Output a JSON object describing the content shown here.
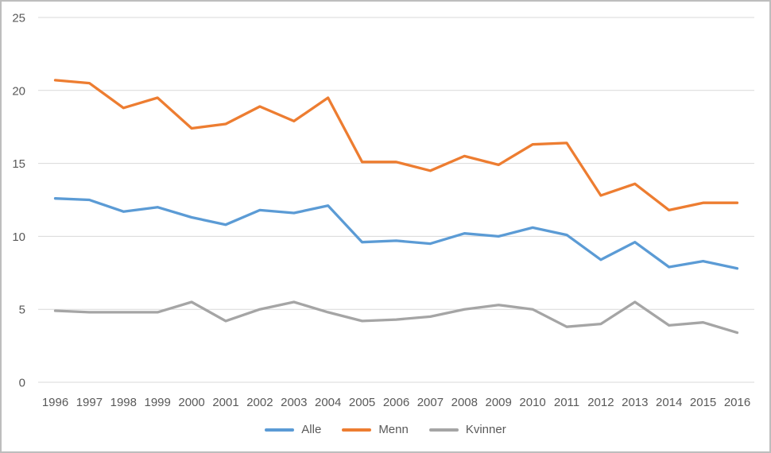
{
  "chart_data": {
    "type": "line",
    "title": "",
    "xlabel": "",
    "ylabel": "",
    "x": [
      "1996",
      "1997",
      "1998",
      "1999",
      "2000",
      "2001",
      "2002",
      "2003",
      "2004",
      "2005",
      "2006",
      "2007",
      "2008",
      "2009",
      "2010",
      "2011",
      "2012",
      "2013",
      "2014",
      "2015",
      "2016"
    ],
    "series": [
      {
        "name": "Alle",
        "color": "#5B9BD5",
        "values": [
          12.6,
          12.5,
          11.7,
          12.0,
          11.3,
          10.8,
          11.8,
          11.6,
          12.1,
          9.6,
          9.7,
          9.5,
          10.2,
          10.0,
          10.6,
          10.1,
          8.4,
          9.6,
          7.9,
          8.3,
          7.8
        ]
      },
      {
        "name": "Menn",
        "color": "#ED7D31",
        "values": [
          20.7,
          20.5,
          18.8,
          19.5,
          17.4,
          17.7,
          18.9,
          17.9,
          19.5,
          15.1,
          15.1,
          14.5,
          15.5,
          14.9,
          16.3,
          16.4,
          12.8,
          13.6,
          11.8,
          12.3,
          12.3
        ]
      },
      {
        "name": "Kvinner",
        "color": "#A5A5A5",
        "values": [
          4.9,
          4.8,
          4.8,
          4.8,
          5.5,
          4.2,
          5.0,
          5.5,
          4.8,
          4.2,
          4.3,
          4.5,
          5.0,
          5.3,
          5.0,
          3.8,
          4.0,
          5.5,
          3.9,
          4.1,
          3.4
        ]
      }
    ],
    "ylim": [
      0,
      25
    ],
    "yticks": [
      0,
      5,
      10,
      15,
      20,
      25
    ],
    "grid": true,
    "legend_position": "bottom",
    "colors": {
      "gridline": "#D9D9D9",
      "axis_text": "#595959",
      "frame_border": "#BDBDBD",
      "background": "#FFFFFF"
    }
  }
}
